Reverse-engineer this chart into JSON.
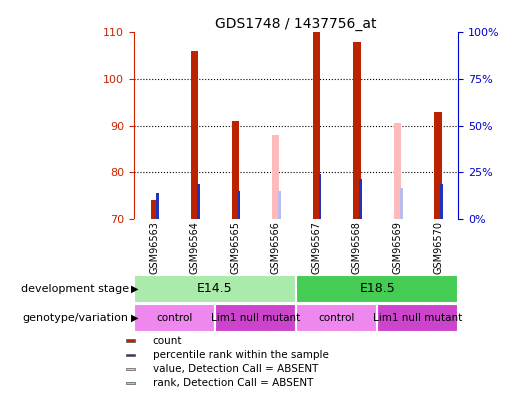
{
  "title": "GDS1748 / 1437756_at",
  "samples": [
    "GSM96563",
    "GSM96564",
    "GSM96565",
    "GSM96566",
    "GSM96567",
    "GSM96568",
    "GSM96569",
    "GSM96570"
  ],
  "ylim": [
    70,
    110
  ],
  "y2lim": [
    0,
    100
  ],
  "yticks": [
    70,
    80,
    90,
    100,
    110
  ],
  "y2ticks": [
    0,
    25,
    50,
    75,
    100
  ],
  "count_values": [
    74,
    106,
    91,
    null,
    110,
    108,
    null,
    93
  ],
  "rank_values": [
    75.5,
    77.5,
    76,
    null,
    79.5,
    78.5,
    null,
    77.5
  ],
  "count_absent": [
    null,
    null,
    null,
    88,
    null,
    null,
    90.5,
    null
  ],
  "rank_absent": [
    null,
    null,
    null,
    76,
    null,
    null,
    76.5,
    null
  ],
  "count_color": "#bb2200",
  "rank_color": "#2233bb",
  "count_absent_color": "#ffbbbb",
  "rank_absent_color": "#bbbbee",
  "dev_stage_groups": [
    {
      "label": "E14.5",
      "start": 0,
      "end": 3,
      "color": "#aaeaaa"
    },
    {
      "label": "E18.5",
      "start": 4,
      "end": 7,
      "color": "#44cc55"
    }
  ],
  "geno_groups": [
    {
      "label": "control",
      "start": 0,
      "end": 1,
      "color": "#ee88ee"
    },
    {
      "label": "Lim1 null mutant",
      "start": 2,
      "end": 3,
      "color": "#cc44cc"
    },
    {
      "label": "control",
      "start": 4,
      "end": 5,
      "color": "#ee88ee"
    },
    {
      "label": "Lim1 null mutant",
      "start": 6,
      "end": 7,
      "color": "#cc44cc"
    }
  ],
  "legend_items": [
    {
      "label": "count",
      "color": "#bb2200"
    },
    {
      "label": "percentile rank within the sample",
      "color": "#2233bb"
    },
    {
      "label": "value, Detection Call = ABSENT",
      "color": "#ffbbbb"
    },
    {
      "label": "rank, Detection Call = ABSENT",
      "color": "#bbbbee"
    }
  ],
  "background_color": "#ffffff",
  "tick_color_left": "#cc2200",
  "tick_color_right": "#0000cc",
  "xlab_bg": "#cccccc"
}
